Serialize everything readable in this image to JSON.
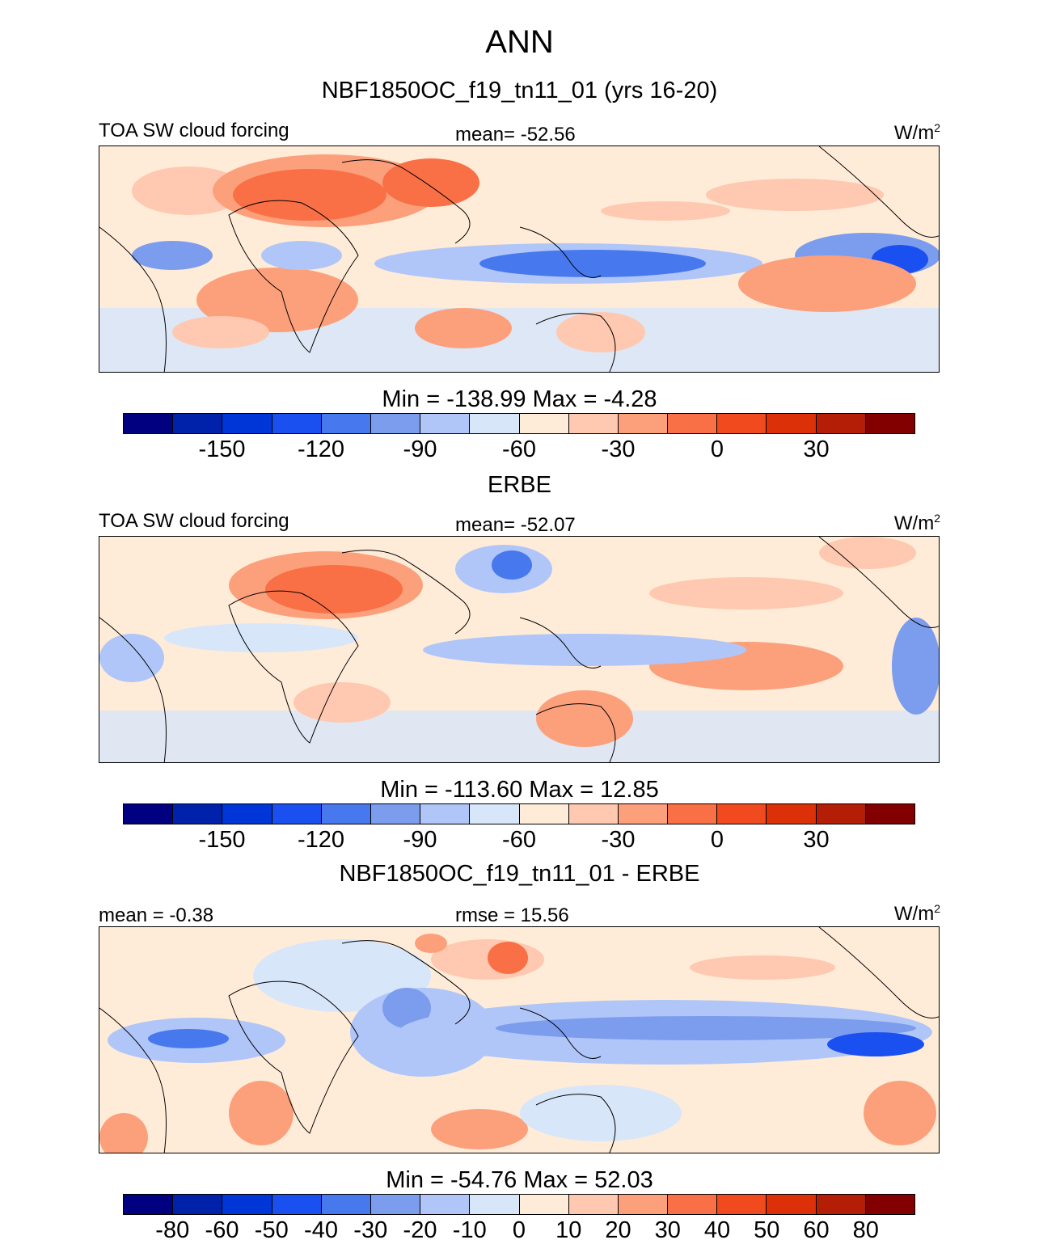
{
  "title": "ANN",
  "colors": [
    "#000080",
    "#0022aa",
    "#0036d8",
    "#1a50f0",
    "#4878ee",
    "#7c9cee",
    "#b0c6f8",
    "#d8e6fa",
    "#ffecd8",
    "#ffc8b0",
    "#fca07c",
    "#fa7046",
    "#f04a1e",
    "#dc3008",
    "#b41e06",
    "#820000"
  ],
  "chart_data": [
    {
      "type": "heatmap",
      "panel_title": "NBF1850OC_f19_tn11_01 (yrs 16-20)",
      "left_label": "TOA SW cloud forcing",
      "center_label": "mean= -52.56",
      "units": "W/m",
      "units_sup": "2",
      "min_max": "Min = -138.99 Max =   -4.28",
      "levels": [
        -150,
        -120,
        -90,
        -60,
        -30,
        0,
        30
      ],
      "level_labels": [
        "-150",
        "-120",
        "-90",
        "-60",
        "-30",
        "0",
        "30"
      ]
    },
    {
      "type": "heatmap",
      "panel_title": "ERBE",
      "left_label": "TOA SW cloud forcing",
      "center_label": "mean= -52.07",
      "units": "W/m",
      "units_sup": "2",
      "min_max": "Min = -113.60 Max =   12.85",
      "levels": [
        -150,
        -120,
        -90,
        -60,
        -30,
        0,
        30
      ],
      "level_labels": [
        "-150",
        "-120",
        "-90",
        "-60",
        "-30",
        "0",
        "30"
      ]
    },
    {
      "type": "heatmap",
      "panel_title": "NBF1850OC_f19_tn11_01 - ERBE",
      "left_label": "mean =  -0.38",
      "center_label": "rmse =  15.56",
      "units": "W/m",
      "units_sup": "2",
      "min_max": "Min = -54.76 Max =   52.03",
      "levels": [
        -80,
        -60,
        -50,
        -40,
        -30,
        -20,
        -10,
        0,
        10,
        20,
        30,
        40,
        50,
        60,
        80
      ],
      "level_labels": [
        "-80",
        "-60",
        "-50",
        "-40",
        "-30",
        "-20",
        "-10",
        "0",
        "10",
        "20",
        "30",
        "40",
        "50",
        "60",
        "80"
      ]
    }
  ]
}
